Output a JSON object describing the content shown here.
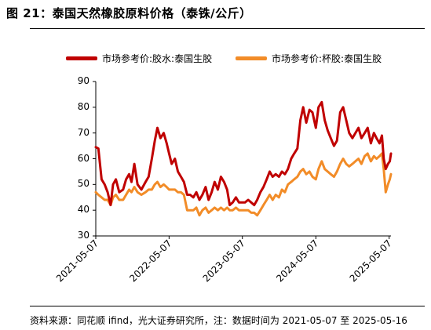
{
  "title": "图 21：泰国天然橡胶原料价格（泰铢/公斤）",
  "source": "资料来源：同花顺 ifind，光大证券研究所，注：数据时间为 2021-05-07 至 2025-05-16",
  "chart_data": {
    "type": "line",
    "x_range": [
      "2021-05-07",
      "2025-05-16"
    ],
    "xticks": [
      "2021-05-07",
      "2022-05-07",
      "2023-05-07",
      "2024-05-07",
      "2025-05-07"
    ],
    "yticks": [
      30,
      40,
      50,
      60,
      70,
      80,
      90
    ],
    "ylim": [
      30,
      90
    ],
    "legend_position": "top",
    "series": [
      {
        "name": "市场参考价:胶水:泰国生胶",
        "color": "#c00000",
        "points": [
          [
            "2021-05-07",
            64.5
          ],
          [
            "2021-05-20",
            64
          ],
          [
            "2021-06-05",
            52
          ],
          [
            "2021-06-20",
            50
          ],
          [
            "2021-07-05",
            47
          ],
          [
            "2021-07-20",
            42
          ],
          [
            "2021-08-01",
            50
          ],
          [
            "2021-08-15",
            52
          ],
          [
            "2021-09-01",
            47
          ],
          [
            "2021-09-20",
            48
          ],
          [
            "2021-10-05",
            52
          ],
          [
            "2021-10-20",
            54
          ],
          [
            "2021-11-01",
            51
          ],
          [
            "2021-11-15",
            58
          ],
          [
            "2021-12-01",
            50
          ],
          [
            "2021-12-20",
            48
          ],
          [
            "2022-01-10",
            51
          ],
          [
            "2022-01-25",
            53
          ],
          [
            "2022-02-10",
            60
          ],
          [
            "2022-02-25",
            67
          ],
          [
            "2022-03-10",
            72
          ],
          [
            "2022-03-25",
            68
          ],
          [
            "2022-04-10",
            70
          ],
          [
            "2022-04-25",
            66
          ],
          [
            "2022-05-07",
            62
          ],
          [
            "2022-05-20",
            58
          ],
          [
            "2022-06-05",
            60
          ],
          [
            "2022-06-20",
            55
          ],
          [
            "2022-07-05",
            53
          ],
          [
            "2022-07-20",
            51
          ],
          [
            "2022-08-05",
            46
          ],
          [
            "2022-08-20",
            46
          ],
          [
            "2022-09-05",
            45
          ],
          [
            "2022-09-20",
            47
          ],
          [
            "2022-10-05",
            44
          ],
          [
            "2022-10-20",
            46
          ],
          [
            "2022-11-05",
            49
          ],
          [
            "2022-11-20",
            44
          ],
          [
            "2022-12-05",
            47
          ],
          [
            "2022-12-20",
            51
          ],
          [
            "2023-01-05",
            48
          ],
          [
            "2023-01-20",
            53
          ],
          [
            "2023-02-05",
            51
          ],
          [
            "2023-02-20",
            48
          ],
          [
            "2023-03-05",
            42
          ],
          [
            "2023-03-20",
            43
          ],
          [
            "2023-04-05",
            45
          ],
          [
            "2023-04-20",
            43
          ],
          [
            "2023-05-07",
            43
          ],
          [
            "2023-05-20",
            43
          ],
          [
            "2023-06-05",
            44
          ],
          [
            "2023-06-20",
            43
          ],
          [
            "2023-07-05",
            42
          ],
          [
            "2023-07-20",
            44
          ],
          [
            "2023-08-05",
            47
          ],
          [
            "2023-08-20",
            49
          ],
          [
            "2023-09-05",
            52
          ],
          [
            "2023-09-20",
            55
          ],
          [
            "2023-10-05",
            53
          ],
          [
            "2023-10-20",
            54
          ],
          [
            "2023-11-05",
            53
          ],
          [
            "2023-11-20",
            55
          ],
          [
            "2023-12-05",
            54
          ],
          [
            "2023-12-20",
            56
          ],
          [
            "2024-01-05",
            60
          ],
          [
            "2024-01-20",
            62
          ],
          [
            "2024-02-05",
            64
          ],
          [
            "2024-02-20",
            75
          ],
          [
            "2024-03-05",
            80
          ],
          [
            "2024-03-20",
            74
          ],
          [
            "2024-04-05",
            79
          ],
          [
            "2024-04-20",
            78
          ],
          [
            "2024-05-07",
            72
          ],
          [
            "2024-05-20",
            80
          ],
          [
            "2024-06-05",
            82
          ],
          [
            "2024-06-20",
            75
          ],
          [
            "2024-07-05",
            71
          ],
          [
            "2024-07-20",
            68
          ],
          [
            "2024-08-05",
            65
          ],
          [
            "2024-08-20",
            67
          ],
          [
            "2024-09-05",
            78
          ],
          [
            "2024-09-20",
            80
          ],
          [
            "2024-10-05",
            75
          ],
          [
            "2024-10-20",
            70
          ],
          [
            "2024-11-05",
            68
          ],
          [
            "2024-11-20",
            70
          ],
          [
            "2024-12-05",
            72
          ],
          [
            "2024-12-20",
            68
          ],
          [
            "2025-01-05",
            70
          ],
          [
            "2025-01-20",
            72
          ],
          [
            "2025-02-05",
            66
          ],
          [
            "2025-02-20",
            70
          ],
          [
            "2025-03-05",
            68
          ],
          [
            "2025-03-20",
            66
          ],
          [
            "2025-04-01",
            69
          ],
          [
            "2025-04-10",
            60
          ],
          [
            "2025-04-20",
            56
          ],
          [
            "2025-05-01",
            58
          ],
          [
            "2025-05-10",
            59
          ],
          [
            "2025-05-16",
            62
          ]
        ]
      },
      {
        "name": "市场参考价:杯胶:泰国生胶",
        "color": "#f28c28",
        "points": [
          [
            "2021-05-07",
            47
          ],
          [
            "2021-05-20",
            46
          ],
          [
            "2021-06-05",
            45
          ],
          [
            "2021-06-20",
            44
          ],
          [
            "2021-07-05",
            44
          ],
          [
            "2021-07-20",
            42
          ],
          [
            "2021-08-01",
            45
          ],
          [
            "2021-08-15",
            46
          ],
          [
            "2021-09-01",
            44
          ],
          [
            "2021-09-20",
            44
          ],
          [
            "2021-10-05",
            46
          ],
          [
            "2021-10-20",
            48
          ],
          [
            "2021-11-01",
            47
          ],
          [
            "2021-11-15",
            49
          ],
          [
            "2021-12-01",
            47
          ],
          [
            "2021-12-20",
            46
          ],
          [
            "2022-01-10",
            47
          ],
          [
            "2022-01-25",
            48
          ],
          [
            "2022-02-10",
            48
          ],
          [
            "2022-02-25",
            50
          ],
          [
            "2022-03-10",
            51
          ],
          [
            "2022-03-25",
            49
          ],
          [
            "2022-04-10",
            50
          ],
          [
            "2022-04-25",
            49
          ],
          [
            "2022-05-07",
            48
          ],
          [
            "2022-05-20",
            48
          ],
          [
            "2022-06-05",
            48
          ],
          [
            "2022-06-20",
            47
          ],
          [
            "2022-07-05",
            47
          ],
          [
            "2022-07-20",
            46
          ],
          [
            "2022-08-05",
            40
          ],
          [
            "2022-08-20",
            40
          ],
          [
            "2022-09-05",
            40
          ],
          [
            "2022-09-20",
            41
          ],
          [
            "2022-10-05",
            38
          ],
          [
            "2022-10-20",
            40
          ],
          [
            "2022-11-05",
            41
          ],
          [
            "2022-11-20",
            39
          ],
          [
            "2022-12-05",
            40
          ],
          [
            "2022-12-20",
            41
          ],
          [
            "2023-01-05",
            40
          ],
          [
            "2023-01-20",
            41
          ],
          [
            "2023-02-05",
            40
          ],
          [
            "2023-02-20",
            41
          ],
          [
            "2023-03-05",
            40
          ],
          [
            "2023-03-20",
            40
          ],
          [
            "2023-04-05",
            41
          ],
          [
            "2023-04-20",
            40
          ],
          [
            "2023-05-07",
            40
          ],
          [
            "2023-05-20",
            40
          ],
          [
            "2023-06-05",
            40
          ],
          [
            "2023-06-20",
            39
          ],
          [
            "2023-07-05",
            39
          ],
          [
            "2023-07-20",
            38
          ],
          [
            "2023-08-05",
            40
          ],
          [
            "2023-08-20",
            42
          ],
          [
            "2023-09-05",
            44
          ],
          [
            "2023-09-20",
            46
          ],
          [
            "2023-10-05",
            44
          ],
          [
            "2023-10-20",
            46
          ],
          [
            "2023-11-05",
            45
          ],
          [
            "2023-11-20",
            48
          ],
          [
            "2023-12-05",
            47
          ],
          [
            "2023-12-20",
            50
          ],
          [
            "2024-01-05",
            51
          ],
          [
            "2024-01-20",
            52
          ],
          [
            "2024-02-05",
            53
          ],
          [
            "2024-02-20",
            55
          ],
          [
            "2024-03-05",
            56
          ],
          [
            "2024-03-20",
            54
          ],
          [
            "2024-04-05",
            55
          ],
          [
            "2024-04-20",
            53
          ],
          [
            "2024-05-07",
            52
          ],
          [
            "2024-05-20",
            56
          ],
          [
            "2024-06-05",
            59
          ],
          [
            "2024-06-20",
            56
          ],
          [
            "2024-07-05",
            55
          ],
          [
            "2024-07-20",
            54
          ],
          [
            "2024-08-05",
            53
          ],
          [
            "2024-08-20",
            55
          ],
          [
            "2024-09-05",
            58
          ],
          [
            "2024-09-20",
            60
          ],
          [
            "2024-10-05",
            58
          ],
          [
            "2024-10-20",
            57
          ],
          [
            "2024-11-05",
            58
          ],
          [
            "2024-11-20",
            59
          ],
          [
            "2024-12-05",
            60
          ],
          [
            "2024-12-20",
            58
          ],
          [
            "2025-01-05",
            61
          ],
          [
            "2025-01-20",
            62
          ],
          [
            "2025-02-05",
            59
          ],
          [
            "2025-02-20",
            61
          ],
          [
            "2025-03-05",
            60
          ],
          [
            "2025-03-20",
            61
          ],
          [
            "2025-04-01",
            62
          ],
          [
            "2025-04-10",
            56
          ],
          [
            "2025-04-20",
            47
          ],
          [
            "2025-05-01",
            50
          ],
          [
            "2025-05-10",
            52
          ],
          [
            "2025-05-16",
            54
          ]
        ]
      }
    ]
  }
}
